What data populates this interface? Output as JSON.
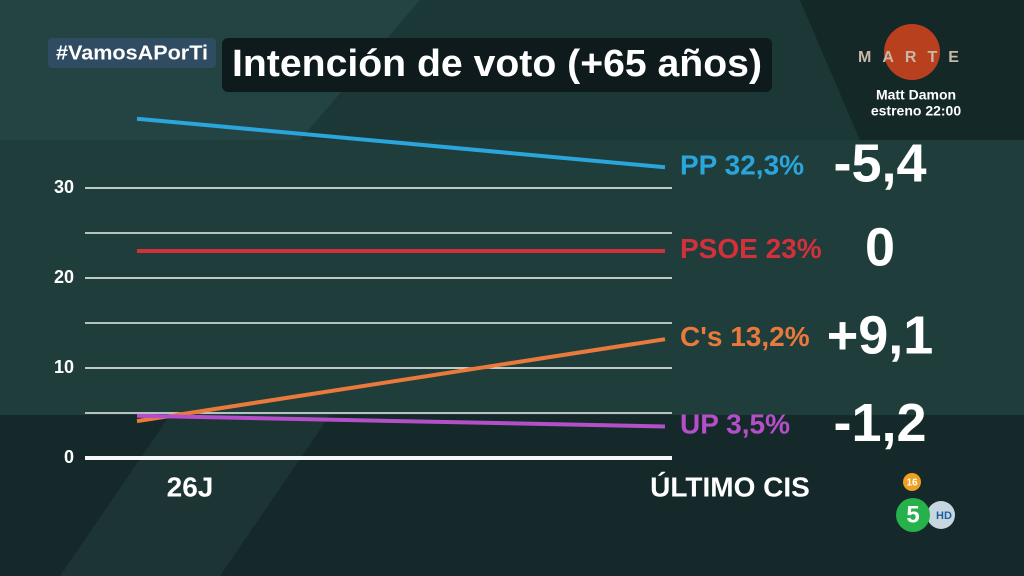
{
  "chart_data": {
    "type": "line",
    "title": "Intención de voto (+65 años)",
    "categories": [
      "26J",
      "ÚLTIMO CIS"
    ],
    "series": [
      {
        "name": "PP",
        "color": "#2aa6dc",
        "values": [
          37.7,
          32.3
        ],
        "value_labels": [
          null,
          "32,3%"
        ],
        "change_label": "-5,4"
      },
      {
        "name": "PSOE",
        "color": "#d2313c",
        "values": [
          23,
          23
        ],
        "value_labels": [
          null,
          "23%"
        ],
        "change_label": "0"
      },
      {
        "name": "C's",
        "color": "#e97a3c",
        "values": [
          4.1,
          13.2
        ],
        "value_labels": [
          null,
          "13,2%"
        ],
        "change_label": "+9,1"
      },
      {
        "name": "UP",
        "color": "#b44fc9",
        "values": [
          4.7,
          3.5
        ],
        "value_labels": [
          null,
          "3,5%"
        ],
        "change_label": "-1,2"
      }
    ],
    "ylim": [
      0,
      40
    ],
    "yticks": [
      0,
      10,
      20,
      30
    ],
    "minor_gridlines": [
      5,
      15,
      25
    ],
    "grid": true
  },
  "overlay": {
    "hashtag": "#VamosAPorTi",
    "channel": "MARTE",
    "promo_title": "Matt Damon",
    "promo_time": "estreno 22:00",
    "age_rating": "16",
    "network": "5",
    "hd": "HD"
  }
}
